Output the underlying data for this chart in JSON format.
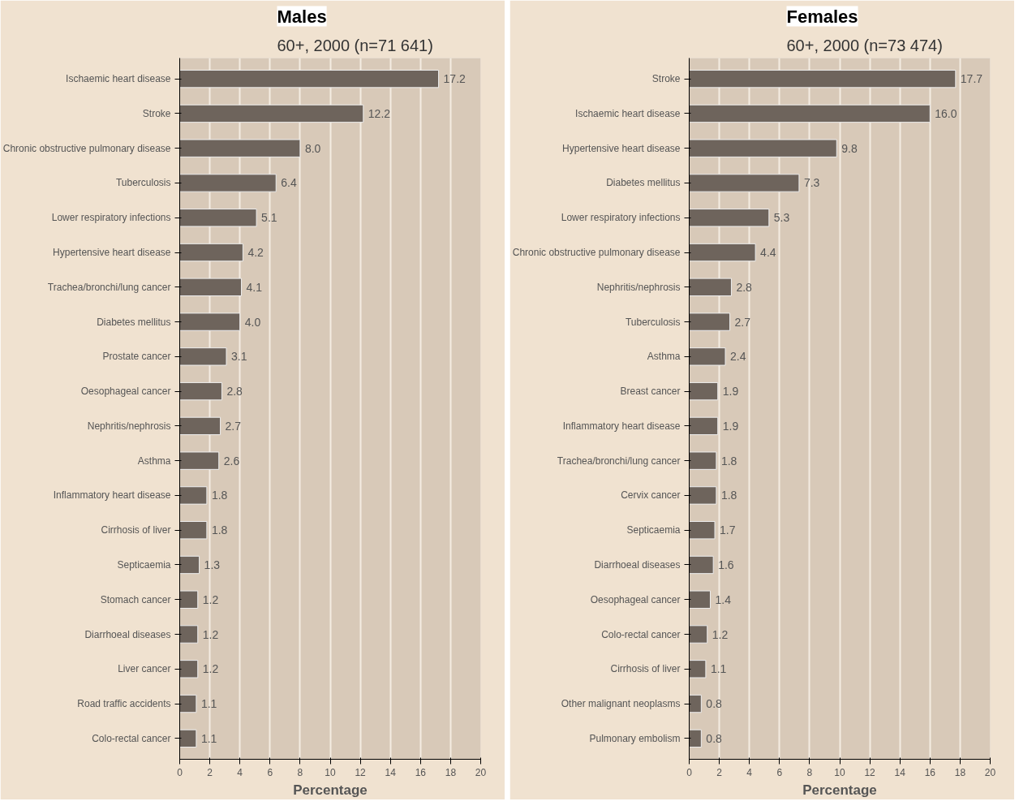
{
  "chart_data": [
    {
      "type": "bar",
      "orientation": "horizontal",
      "title": "Males",
      "subtitle": "60+, 2000 (n=71 641)",
      "xlabel": "Percentage",
      "color": "#6e645c",
      "xlim": [
        0,
        20
      ],
      "xticks": [
        0,
        2,
        4,
        6,
        8,
        10,
        12,
        14,
        16,
        18,
        20
      ],
      "grid": "x",
      "value_labels": [
        "17.2",
        "12.2",
        "8.0",
        "6.4",
        "5.1",
        "4.2",
        "4.1",
        "4.0",
        "3.1",
        "2.8",
        "2.7",
        "2.6",
        "1.8",
        "1.8",
        "1.3",
        "1.2",
        "1.2",
        "1.2",
        "1.1",
        "1.1"
      ],
      "categories": [
        "Ischaemic heart disease",
        "Stroke",
        "Chronic obstructive pulmonary disease",
        "Tuberculosis",
        "Lower respiratory infections",
        "Hypertensive heart disease",
        "Trachea/bronchi/lung cancer",
        "Diabetes mellitus",
        "Prostate cancer",
        "Oesophageal cancer",
        "Nephritis/nephrosis",
        "Asthma",
        "Inflammatory heart disease",
        "Cirrhosis of liver",
        "Septicaemia",
        "Stomach cancer",
        "Diarrhoeal diseases",
        "Liver cancer",
        "Road traffic accidents",
        "Colo-rectal cancer"
      ],
      "values": [
        17.2,
        12.2,
        8.0,
        6.4,
        5.1,
        4.2,
        4.1,
        4.0,
        3.1,
        2.8,
        2.7,
        2.6,
        1.8,
        1.8,
        1.3,
        1.2,
        1.2,
        1.2,
        1.1,
        1.1
      ]
    },
    {
      "type": "bar",
      "orientation": "horizontal",
      "title": "Females",
      "subtitle": "60+, 2000 (n=73 474)",
      "xlabel": "Percentage",
      "color": "#6e645c",
      "xlim": [
        0,
        20
      ],
      "xticks": [
        0,
        2,
        4,
        6,
        8,
        10,
        12,
        14,
        16,
        18,
        20
      ],
      "grid": "x",
      "value_labels": [
        "17.7",
        "16.0",
        "9.8",
        "7.3",
        "5.3",
        "4.4",
        "2.8",
        "2.7",
        "2.4",
        "1.9",
        "1.9",
        "1.8",
        "1.8",
        "1.7",
        "1.6",
        "1.4",
        "1.2",
        "1.1",
        "0.8",
        "0.8"
      ],
      "categories": [
        "Stroke",
        "Ischaemic heart disease",
        "Hypertensive heart disease",
        "Diabetes mellitus",
        "Lower respiratory infections",
        "Chronic obstructive pulmonary disease",
        "Nephritis/nephrosis",
        "Tuberculosis",
        "Asthma",
        "Breast cancer",
        "Inflammatory heart disease",
        "Trachea/bronchi/lung cancer",
        "Cervix cancer",
        "Septicaemia",
        "Diarrhoeal diseases",
        "Oesophageal cancer",
        "Colo-rectal cancer",
        "Cirrhosis of liver",
        "Other malignant neoplasms",
        "Pulmonary embolism"
      ],
      "values": [
        17.7,
        16.0,
        9.8,
        7.3,
        5.3,
        4.4,
        2.8,
        2.7,
        2.4,
        1.9,
        1.9,
        1.8,
        1.8,
        1.7,
        1.6,
        1.4,
        1.2,
        1.1,
        0.8,
        0.8
      ]
    }
  ]
}
